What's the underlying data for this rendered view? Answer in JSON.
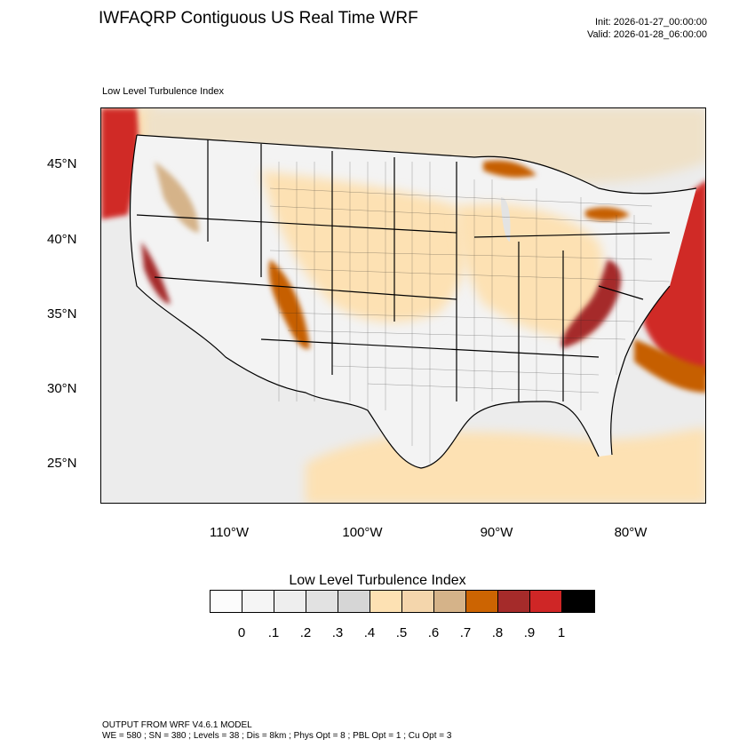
{
  "header": {
    "title": "IWFAQRP Contiguous US Real Time WRF",
    "init": "Init: 2026-01-27_00:00:00",
    "valid": "Valid: 2026-01-28_06:00:00"
  },
  "map": {
    "label": "Low Level Turbulence Index",
    "lat_labels": [
      "45°N",
      "40°N",
      "35°N",
      "30°N",
      "25°N"
    ],
    "lon_labels": [
      "110°W",
      "100°W",
      "90°W",
      "80°W"
    ],
    "colors": {
      "ocean_high": "#d02a28",
      "ocean_mid": "#d06800",
      "land_low": "#f2f2f2",
      "land_moderate": "#fde1b3",
      "terrain_high": "#c65f05",
      "boundary": "#000000"
    }
  },
  "legend": {
    "title": "Low Level Turbulence Index",
    "labels": [
      "0",
      ".1",
      ".2",
      ".3",
      ".4",
      ".5",
      ".6",
      ".7",
      ".8",
      ".9",
      "1"
    ],
    "colors": [
      "#fcfcfc",
      "#f5f5f5",
      "#eeeeee",
      "#e2e2e2",
      "#d6d6d6",
      "#fde1b3",
      "#f4d6ac",
      "#d5b389",
      "#cc6402",
      "#a52b2a",
      "#cf2626",
      "#000000"
    ]
  },
  "footer": {
    "line1": "OUTPUT FROM WRF V4.6.1 MODEL",
    "line2": "WE = 580 ; SN = 380 ; Levels = 38 ; Dis = 8km ; Phys Opt = 8 ; PBL Opt = 1 ; Cu Opt = 3"
  }
}
